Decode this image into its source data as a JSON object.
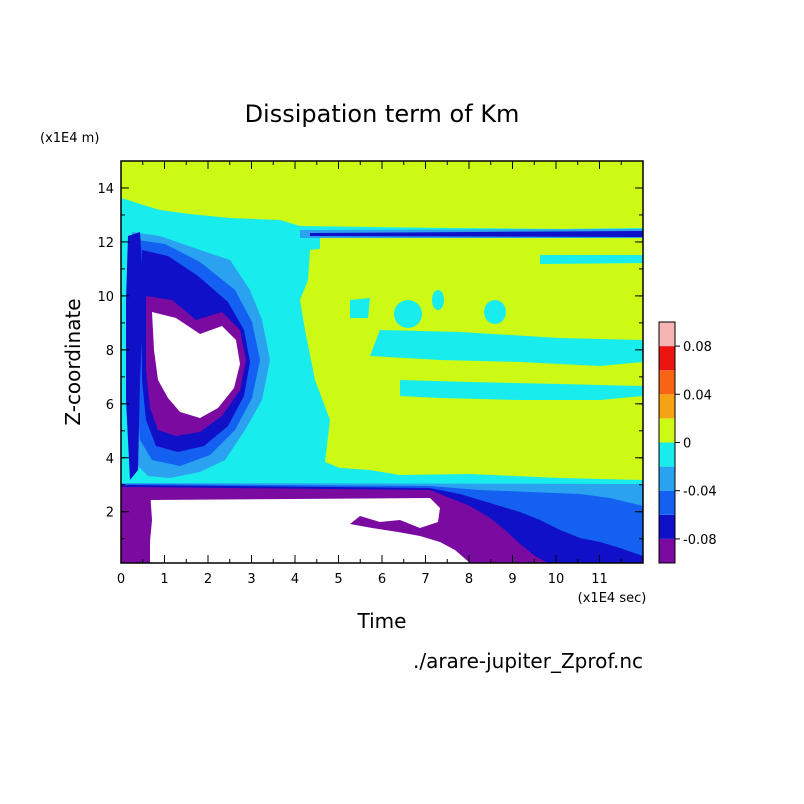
{
  "chart_data": {
    "type": "heatmap",
    "title": "Dissipation term of Km",
    "xlabel": "Time",
    "ylabel": "Z-coordinate",
    "x_unit": "(x1E4 sec)",
    "y_unit": "(x1E4 m)",
    "xlim": [
      0,
      12
    ],
    "ylim": [
      0.1,
      15
    ],
    "x_ticks": [
      "0",
      "1",
      "2",
      "3",
      "4",
      "5",
      "6",
      "7",
      "8",
      "9",
      "10",
      "11"
    ],
    "y_ticks": [
      "2",
      "4",
      "6",
      "8",
      "10",
      "12",
      "14"
    ],
    "colorbar": {
      "levels": [
        -0.1,
        -0.08,
        -0.06,
        -0.04,
        -0.02,
        0,
        0.02,
        0.04,
        0.06,
        0.08,
        0.1
      ],
      "colors": [
        "#7a0aa0",
        "#1010c8",
        "#1460f0",
        "#2aa2f0",
        "#19ecec",
        "#cdfa14",
        "#f6a214",
        "#f86414",
        "#ec1410",
        "#f6b4b4"
      ],
      "tick_labels": [
        "-0.08",
        "-0.04",
        "0",
        "0.04",
        "0.08"
      ],
      "tick_values": [
        -0.08,
        -0.04,
        0,
        0.04,
        0.08
      ]
    },
    "regions": [
      {
        "name": "upper-zero-layer",
        "level": 0,
        "x": [
          0.3,
          12
        ],
        "y": [
          12.5,
          15
        ]
      },
      {
        "name": "middle-zero-layer",
        "level": 0,
        "x": [
          4.5,
          12
        ],
        "y": [
          3.0,
          11.6
        ]
      },
      {
        "name": "mid-negative-band",
        "level": -0.02,
        "x": [
          0.1,
          4.5
        ],
        "y": [
          3.0,
          12.4
        ]
      },
      {
        "name": "strong-negative-core",
        "level": -0.1,
        "x": [
          0.6,
          3.0
        ],
        "y": [
          4.5,
          9.5
        ]
      },
      {
        "name": "lower-strong-negative",
        "level": -0.1,
        "x": [
          0.6,
          7.5
        ],
        "y": [
          0.1,
          2.7
        ]
      },
      {
        "name": "deep-negative-layer",
        "level": -0.08,
        "x": [
          8.0,
          12
        ],
        "y": [
          0.1,
          2.5
        ]
      }
    ],
    "annotation": "./arare-jupiter_Zprof.nc"
  }
}
